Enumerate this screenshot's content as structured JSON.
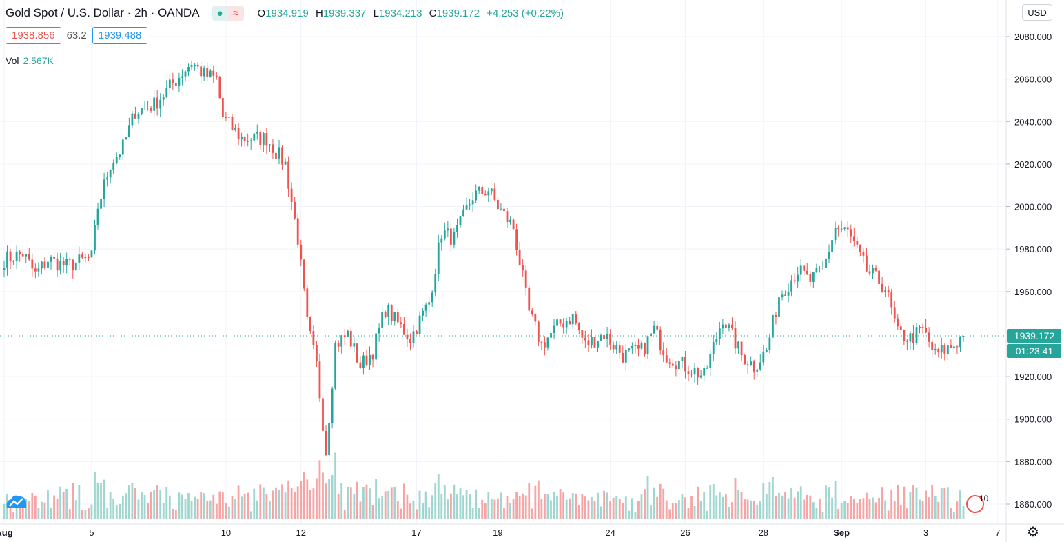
{
  "header": {
    "symbol": "Gold Spot / U.S. Dollar · 2h · OANDA",
    "ohlc": {
      "o_label": "O",
      "o": "1934.919",
      "h_label": "H",
      "h": "1939.337",
      "l_label": "L",
      "l": "1934.213",
      "c_label": "C",
      "c": "1939.172",
      "change": "+4.253 (+0.22%)"
    },
    "indicator_icons": [
      "dot-icon",
      "wave-icon"
    ]
  },
  "trade": {
    "sell": "1938.856",
    "spread": "63.2",
    "buy": "1939.488"
  },
  "volume": {
    "label": "Vol",
    "value": "2.567K"
  },
  "currency": "USD",
  "last_price": "1939.172",
  "countdown": "01:23:41",
  "events_count": "10",
  "colors": {
    "up": "#26a69a",
    "down": "#ef5350",
    "up_vol": "#9fd6d0",
    "down_vol": "#f5a5a5",
    "grid": "#f0f3fa"
  },
  "chart_data": {
    "type": "candlestick",
    "ylim": [
      1850,
      2085
    ],
    "yticks": [
      "2080.000",
      "2060.000",
      "2040.000",
      "2020.000",
      "2000.000",
      "1980.000",
      "1960.000",
      "1940.000",
      "1920.000",
      "1900.000",
      "1880.000",
      "1860.000"
    ],
    "yticks_values": [
      2080,
      2060,
      2040,
      2020,
      2000,
      1980,
      1960,
      1940,
      1920,
      1900,
      1880,
      1860
    ],
    "xticks": [
      "Aug",
      "5",
      "10",
      "12",
      "17",
      "19",
      "24",
      "26",
      "28",
      "Sep",
      "3",
      "7"
    ],
    "xticks_index": [
      0,
      28,
      71,
      95,
      132,
      158,
      194,
      218,
      243,
      268,
      295,
      318
    ],
    "keypoints": [
      [
        0,
        1975
      ],
      [
        6,
        1978
      ],
      [
        10,
        1968
      ],
      [
        14,
        1975
      ],
      [
        20,
        1972
      ],
      [
        28,
        1976
      ],
      [
        30,
        2000
      ],
      [
        34,
        2020
      ],
      [
        38,
        2028
      ],
      [
        42,
        2045
      ],
      [
        48,
        2048
      ],
      [
        54,
        2058
      ],
      [
        60,
        2068
      ],
      [
        64,
        2062
      ],
      [
        68,
        2060
      ],
      [
        70,
        2042
      ],
      [
        76,
        2032
      ],
      [
        84,
        2032
      ],
      [
        90,
        2020
      ],
      [
        94,
        1985
      ],
      [
        97,
        1945
      ],
      [
        100,
        1925
      ],
      [
        103,
        1885
      ],
      [
        106,
        1935
      ],
      [
        110,
        1940
      ],
      [
        114,
        1925
      ],
      [
        118,
        1932
      ],
      [
        122,
        1952
      ],
      [
        130,
        1938
      ],
      [
        136,
        1955
      ],
      [
        140,
        1988
      ],
      [
        144,
        1985
      ],
      [
        150,
        2005
      ],
      [
        155,
        2008
      ],
      [
        158,
        2000
      ],
      [
        163,
        1990
      ],
      [
        168,
        1950
      ],
      [
        172,
        1935
      ],
      [
        178,
        1945
      ],
      [
        182,
        1948
      ],
      [
        186,
        1935
      ],
      [
        192,
        1940
      ],
      [
        198,
        1930
      ],
      [
        204,
        1932
      ],
      [
        208,
        1942
      ],
      [
        212,
        1930
      ],
      [
        218,
        1925
      ],
      [
        224,
        1920
      ],
      [
        230,
        1948
      ],
      [
        236,
        1930
      ],
      [
        240,
        1925
      ],
      [
        244,
        1932
      ],
      [
        248,
        1958
      ],
      [
        254,
        1970
      ],
      [
        258,
        1965
      ],
      [
        262,
        1970
      ],
      [
        266,
        1990
      ],
      [
        270,
        1988
      ],
      [
        276,
        1970
      ],
      [
        282,
        1962
      ],
      [
        286,
        1940
      ],
      [
        290,
        1938
      ],
      [
        294,
        1942
      ],
      [
        298,
        1930
      ],
      [
        304,
        1935
      ],
      [
        307,
        1939.17
      ]
    ],
    "n_candles": 308
  }
}
